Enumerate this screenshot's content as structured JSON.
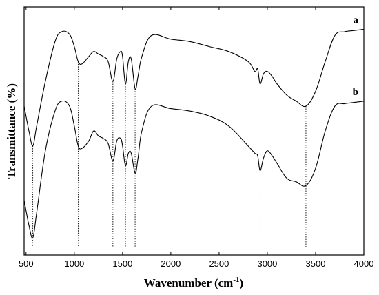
{
  "chart_data": {
    "type": "line",
    "title": "",
    "xlabel_main": "Wavenumber (cm",
    "xlabel_sup": "-1",
    "xlabel_end": ")",
    "ylabel": "Transmittance (%)",
    "xlim": [
      480,
      4000
    ],
    "ylim": [
      0,
      1
    ],
    "xticks": [
      500,
      1000,
      1500,
      2000,
      2500,
      3000,
      3500,
      4000
    ],
    "y_tick_labels_shown": false,
    "grid": false,
    "reference_lines_x": [
      570,
      1040,
      1400,
      1530,
      1630,
      2925,
      3400
    ],
    "series": [
      {
        "name": "a",
        "values": [
          [
            480,
            0.6
          ],
          [
            530,
            0.5
          ],
          [
            570,
            0.44
          ],
          [
            610,
            0.52
          ],
          [
            700,
            0.7
          ],
          [
            800,
            0.86
          ],
          [
            870,
            0.9
          ],
          [
            950,
            0.89
          ],
          [
            1000,
            0.84
          ],
          [
            1040,
            0.78
          ],
          [
            1080,
            0.77
          ],
          [
            1150,
            0.8
          ],
          [
            1200,
            0.82
          ],
          [
            1250,
            0.81
          ],
          [
            1300,
            0.8
          ],
          [
            1350,
            0.78
          ],
          [
            1400,
            0.7
          ],
          [
            1440,
            0.79
          ],
          [
            1480,
            0.82
          ],
          [
            1500,
            0.8
          ],
          [
            1530,
            0.69
          ],
          [
            1560,
            0.78
          ],
          [
            1590,
            0.79
          ],
          [
            1630,
            0.67
          ],
          [
            1660,
            0.72
          ],
          [
            1700,
            0.8
          ],
          [
            1800,
            0.885
          ],
          [
            2000,
            0.87
          ],
          [
            2200,
            0.86
          ],
          [
            2400,
            0.84
          ],
          [
            2600,
            0.82
          ],
          [
            2800,
            0.78
          ],
          [
            2870,
            0.74
          ],
          [
            2900,
            0.75
          ],
          [
            2925,
            0.69
          ],
          [
            2960,
            0.73
          ],
          [
            3000,
            0.74
          ],
          [
            3050,
            0.72
          ],
          [
            3100,
            0.69
          ],
          [
            3200,
            0.645
          ],
          [
            3300,
            0.62
          ],
          [
            3400,
            0.6
          ],
          [
            3500,
            0.66
          ],
          [
            3600,
            0.78
          ],
          [
            3700,
            0.885
          ],
          [
            3800,
            0.9
          ],
          [
            3900,
            0.905
          ],
          [
            4000,
            0.91
          ]
        ]
      },
      {
        "name": "b",
        "values": [
          [
            480,
            0.22
          ],
          [
            530,
            0.12
          ],
          [
            570,
            0.07
          ],
          [
            610,
            0.17
          ],
          [
            700,
            0.42
          ],
          [
            800,
            0.58
          ],
          [
            870,
            0.62
          ],
          [
            950,
            0.6
          ],
          [
            1000,
            0.52
          ],
          [
            1040,
            0.44
          ],
          [
            1080,
            0.43
          ],
          [
            1150,
            0.46
          ],
          [
            1200,
            0.5
          ],
          [
            1250,
            0.48
          ],
          [
            1300,
            0.47
          ],
          [
            1350,
            0.45
          ],
          [
            1400,
            0.38
          ],
          [
            1440,
            0.46
          ],
          [
            1480,
            0.47
          ],
          [
            1500,
            0.44
          ],
          [
            1530,
            0.36
          ],
          [
            1560,
            0.41
          ],
          [
            1590,
            0.41
          ],
          [
            1630,
            0.33
          ],
          [
            1660,
            0.39
          ],
          [
            1700,
            0.5
          ],
          [
            1800,
            0.6
          ],
          [
            2000,
            0.59
          ],
          [
            2200,
            0.58
          ],
          [
            2400,
            0.56
          ],
          [
            2600,
            0.52
          ],
          [
            2800,
            0.44
          ],
          [
            2870,
            0.41
          ],
          [
            2900,
            0.4
          ],
          [
            2925,
            0.34
          ],
          [
            2960,
            0.39
          ],
          [
            3000,
            0.42
          ],
          [
            3050,
            0.4
          ],
          [
            3100,
            0.37
          ],
          [
            3200,
            0.31
          ],
          [
            3300,
            0.295
          ],
          [
            3400,
            0.28
          ],
          [
            3500,
            0.35
          ],
          [
            3600,
            0.5
          ],
          [
            3700,
            0.6
          ],
          [
            3800,
            0.61
          ],
          [
            3900,
            0.615
          ],
          [
            4000,
            0.62
          ]
        ]
      }
    ]
  }
}
